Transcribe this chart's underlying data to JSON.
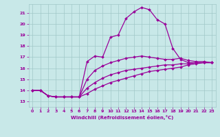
{
  "xlabel": "Windchill (Refroidissement éolien,°C)",
  "x_ticks": [
    0,
    1,
    2,
    3,
    4,
    5,
    6,
    7,
    8,
    9,
    10,
    11,
    12,
    13,
    14,
    15,
    16,
    17,
    18,
    19,
    20,
    21,
    22,
    23
  ],
  "y_ticks": [
    13,
    14,
    15,
    16,
    17,
    18,
    19,
    20,
    21
  ],
  "ylim": [
    12.5,
    21.8
  ],
  "xlim": [
    -0.5,
    23.5
  ],
  "background_color": "#c8e8e8",
  "grid_color": "#a0c8c8",
  "line_color": "#990099",
  "line_width": 0.9,
  "marker": "D",
  "marker_size": 2.0,
  "series": [
    [
      14.0,
      14.0,
      13.5,
      13.4,
      13.4,
      13.4,
      13.4,
      16.6,
      17.1,
      17.0,
      18.8,
      19.0,
      20.5,
      21.1,
      21.5,
      21.3,
      20.4,
      20.0,
      17.8,
      16.8,
      16.5,
      16.5,
      16.5,
      16.5
    ],
    [
      14.0,
      14.0,
      13.5,
      13.4,
      13.4,
      13.4,
      13.4,
      15.0,
      15.8,
      16.2,
      16.5,
      16.7,
      16.9,
      17.0,
      17.1,
      17.0,
      16.9,
      16.8,
      16.8,
      16.9,
      16.7,
      16.6,
      16.6,
      16.5
    ],
    [
      14.0,
      14.0,
      13.5,
      13.4,
      13.4,
      13.4,
      13.4,
      14.2,
      14.7,
      15.1,
      15.4,
      15.6,
      15.8,
      15.9,
      16.0,
      16.1,
      16.2,
      16.3,
      16.3,
      16.4,
      16.4,
      16.5,
      16.5,
      16.5
    ],
    [
      14.0,
      14.0,
      13.5,
      13.4,
      13.4,
      13.4,
      13.4,
      13.7,
      14.1,
      14.4,
      14.7,
      14.9,
      15.1,
      15.3,
      15.5,
      15.7,
      15.8,
      15.9,
      16.0,
      16.1,
      16.3,
      16.4,
      16.5,
      16.5
    ]
  ]
}
